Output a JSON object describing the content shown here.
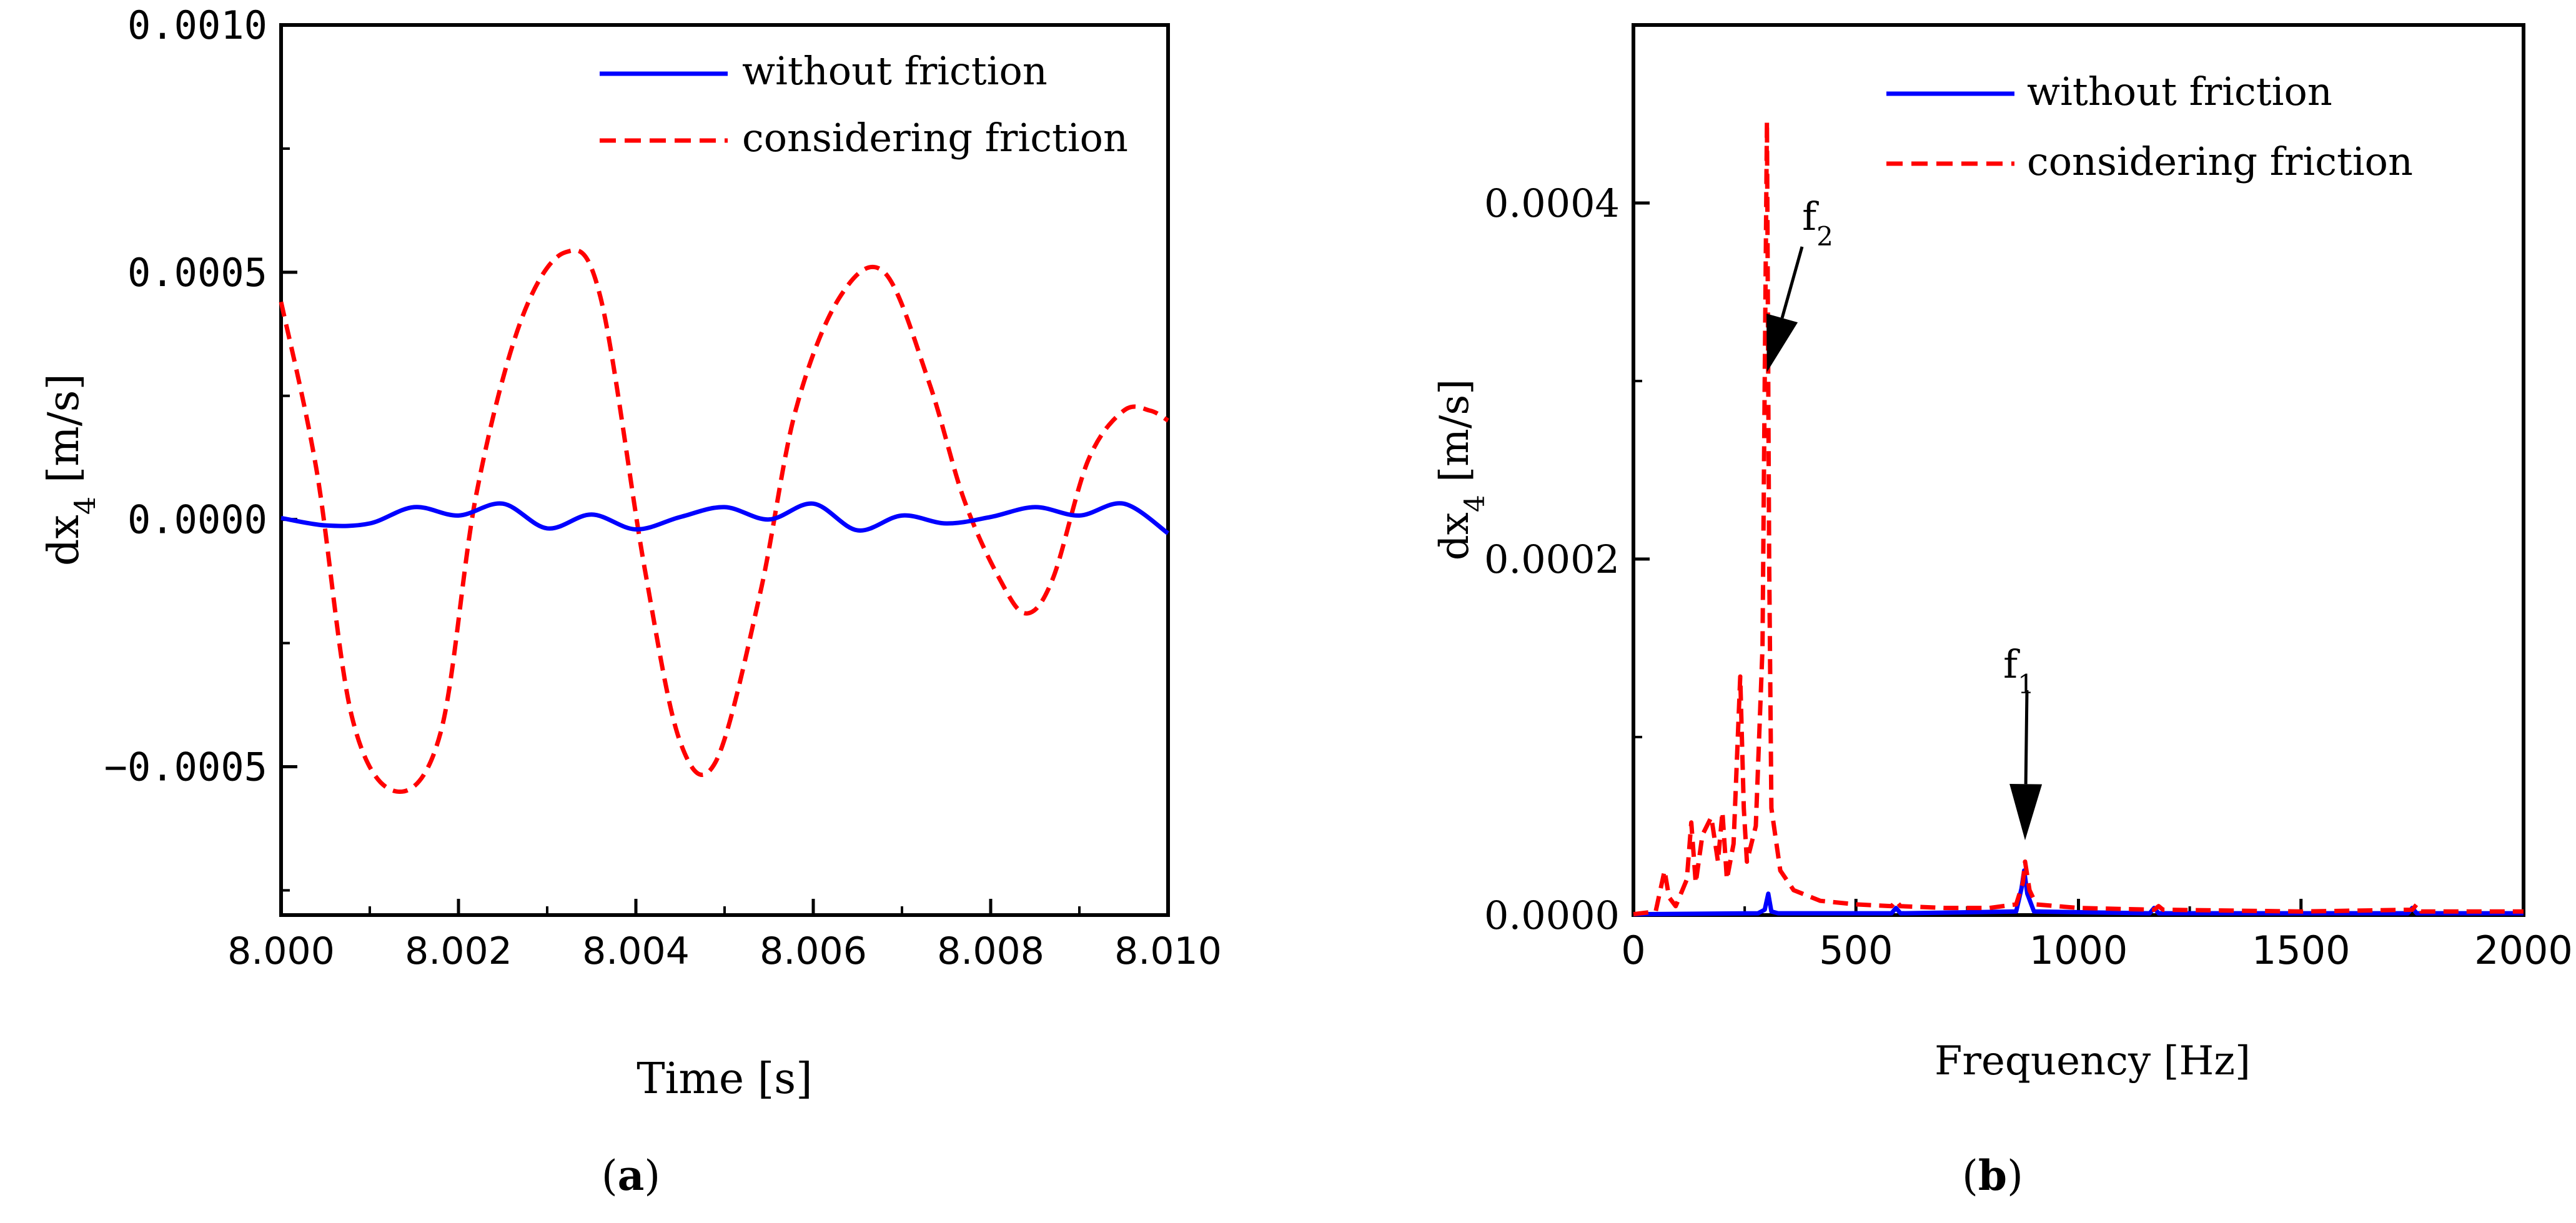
{
  "charts": [
    {
      "type": "line",
      "panel_label": "a",
      "xlabel": "Time [s]",
      "ylabel": "dx",
      "ylabel_sub": "4",
      "ylabel_unit": " [m/s]",
      "xlim": [
        8.0,
        8.01
      ],
      "ylim": [
        -0.0008,
        0.001
      ],
      "x_ticks": [
        "8.000",
        "8.002",
        "8.004",
        "8.006",
        "8.008",
        "8.010"
      ],
      "x_tick_values": [
        8.0,
        8.002,
        8.004,
        8.006,
        8.008,
        8.01
      ],
      "y_ticks": [
        "0.0010",
        "0.0005",
        "0.0000",
        "−0.0005"
      ],
      "y_tick_values": [
        0.001,
        0.0005,
        0.0,
        -0.0005
      ],
      "legend_position": "top-right",
      "series": [
        {
          "name": "without friction",
          "color": "#0000ff",
          "style": "solid",
          "x": [
            8.0,
            8.0005,
            8.001,
            8.0015,
            8.002,
            8.0025,
            8.003,
            8.0035,
            8.004,
            8.0045,
            8.005,
            8.0055,
            8.006,
            8.0065,
            8.007,
            8.0075,
            8.008,
            8.0085,
            8.009,
            8.0095,
            8.01
          ],
          "values": [
            3e-06,
            -1.2e-05,
            -8e-06,
            2.5e-05,
            8e-06,
            3.2e-05,
            -1.8e-05,
            1e-05,
            -2e-05,
            5e-06,
            2.5e-05,
            0.0,
            3.2e-05,
            -2.2e-05,
            8e-06,
            -8e-06,
            5e-06,
            2.5e-05,
            8e-06,
            3.2e-05,
            -2.8e-05
          ]
        },
        {
          "name": "considering friction",
          "color": "#ff0000",
          "style": "dashed",
          "x": [
            8.0,
            8.0004,
            8.0008,
            8.0013,
            8.0018,
            8.0022,
            8.0027,
            8.0032,
            8.0036,
            8.0041,
            8.0045,
            8.0049,
            8.0054,
            8.0058,
            8.0063,
            8.0068,
            8.0073,
            8.0077,
            8.0081,
            8.0084,
            8.0087,
            8.0091,
            8.0095,
            8.0098,
            8.01
          ],
          "values": [
            0.00044,
            0.0001,
            -0.0004,
            -0.00055,
            -0.00043,
            5e-05,
            0.0004,
            0.00054,
            0.00045,
            -0.0001,
            -0.00045,
            -0.00049,
            -0.00015,
            0.00022,
            0.00045,
            0.0005,
            0.00028,
            4e-05,
            -0.00012,
            -0.00019,
            -0.00012,
            0.00012,
            0.00022,
            0.00022,
            0.0002
          ]
        }
      ]
    },
    {
      "type": "line",
      "panel_label": "b",
      "xlabel": "Frequency [Hz]",
      "ylabel": "dx",
      "ylabel_sub": "4",
      "ylabel_unit": " [m/s]",
      "xlim": [
        0,
        2000
      ],
      "ylim": [
        0,
        0.0005
      ],
      "x_ticks": [
        "0",
        "500",
        "1000",
        "1500",
        "2000"
      ],
      "x_tick_values": [
        0,
        500,
        1000,
        1500,
        2000
      ],
      "y_ticks": [
        "0.0004",
        "0.0002",
        "0.0000"
      ],
      "y_tick_values": [
        0.0004,
        0.0002,
        0.0
      ],
      "legend_position": "top-right",
      "series": [
        {
          "name": "without friction",
          "color": "#0000ff",
          "style": "solid",
          "x": [
            0,
            280,
            295,
            303,
            310,
            325,
            580,
            590,
            600,
            860,
            872,
            878,
            885,
            900,
            1160,
            1170,
            1180,
            1740,
            1750,
            1760,
            2000
          ],
          "values": [
            5e-07,
            1e-06,
            3e-06,
            1.2e-05,
            2e-06,
            1e-06,
            1e-06,
            4e-06,
            1e-06,
            2e-06,
            1.5e-05,
            2.5e-05,
            1.2e-05,
            2e-06,
            1e-06,
            4e-06,
            1e-06,
            1e-06,
            4e-06,
            1e-06,
            1e-06
          ]
        },
        {
          "name": "considering friction",
          "color": "#ff0000",
          "style": "dashed",
          "x": [
            0,
            50,
            70,
            80,
            95,
            120,
            130,
            140,
            155,
            175,
            190,
            200,
            210,
            225,
            240,
            248,
            255,
            275,
            290,
            295,
            300,
            305,
            310,
            330,
            360,
            420,
            500,
            580,
            590,
            600,
            700,
            800,
            860,
            875,
            880,
            890,
            905,
            1000,
            1170,
            1180,
            1190,
            1500,
            1750,
            1760,
            1770,
            2000
          ],
          "values": [
            5e-07,
            2e-06,
            2.5e-05,
            1e-05,
            5e-06,
            2e-05,
            5.2e-05,
            1.8e-05,
            4.5e-05,
            5.5e-05,
            3e-05,
            5.8e-05,
            2e-05,
            4e-05,
            0.000134,
            6e-05,
            3e-05,
            5e-05,
            0.00015,
            0.0003,
            0.000446,
            0.0002,
            6e-05,
            2.5e-05,
            1.4e-05,
            8e-06,
            6e-06,
            5e-06,
            8e-06,
            5e-06,
            4e-06,
            4e-06,
            6e-06,
            1.8e-05,
            3e-05,
            1.4e-05,
            6e-06,
            4e-06,
            3e-06,
            5e-06,
            3e-06,
            2e-06,
            3e-06,
            6e-06,
            2e-06,
            2e-06
          ]
        }
      ],
      "annotations": [
        {
          "label": "f",
          "sub": "2",
          "target_x": 300,
          "target_y": 0.000305
        },
        {
          "label": "f",
          "sub": "1",
          "target_x": 880,
          "target_y": 4.2e-05
        }
      ]
    }
  ]
}
